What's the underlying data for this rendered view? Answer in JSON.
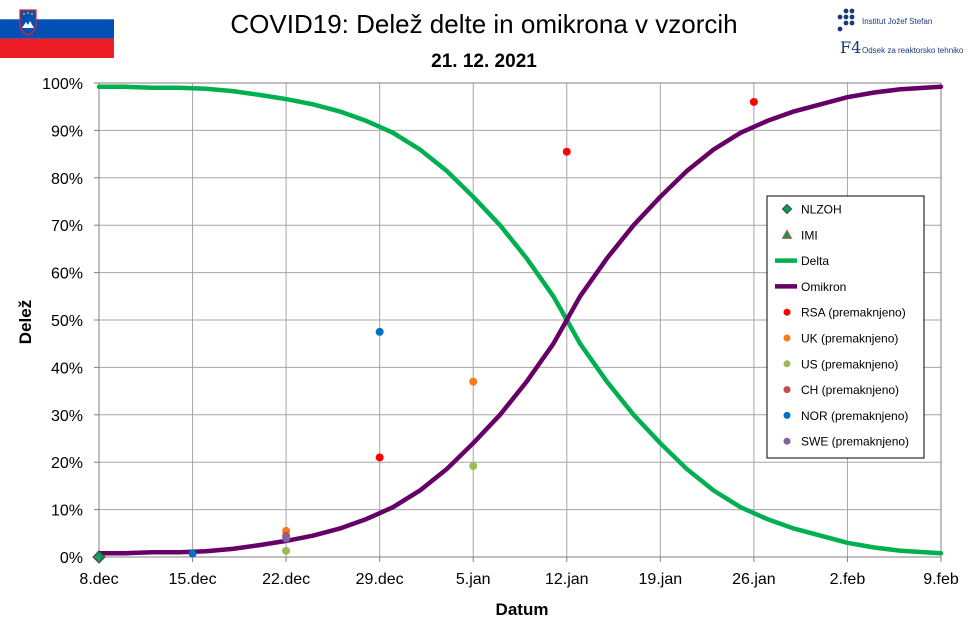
{
  "header": {
    "title": "COVID19: Delež delte in omikrona v vzorcih",
    "date": "21. 12. 2021",
    "logo_ijs_text": "Institut Jožef Stefan",
    "logo_f4_text": "Odsek za reaktorsko tehniko",
    "logo_f4_mark": "F4"
  },
  "chart_data": {
    "type": "line",
    "xlabel": "Datum",
    "ylabel": "Delež",
    "x_tick_labels": [
      "8.dec",
      "15.dec",
      "22.dec",
      "29.dec",
      "5.jan",
      "12.jan",
      "19.jan",
      "26.jan",
      "2.feb",
      "9.feb"
    ],
    "x_tick_days": [
      0,
      7,
      14,
      21,
      28,
      35,
      42,
      49,
      56,
      63
    ],
    "xlim": [
      0,
      63
    ],
    "ylim": [
      0,
      100
    ],
    "y_ticks": [
      0,
      10,
      20,
      30,
      40,
      50,
      60,
      70,
      80,
      90,
      100
    ],
    "y_tick_suffix": "%",
    "grid": true,
    "legend_position": "right",
    "series": [
      {
        "name": "Delta",
        "kind": "line",
        "color": "#00b050",
        "x": [
          0,
          2,
          4,
          6,
          8,
          10,
          12,
          14,
          16,
          18,
          20,
          22,
          24,
          26,
          28,
          30,
          32,
          34,
          35,
          36,
          38,
          40,
          42,
          44,
          46,
          48,
          50,
          52,
          54,
          56,
          58,
          60,
          63
        ],
        "y": [
          99.2,
          99.2,
          99,
          99,
          98.8,
          98.3,
          97.5,
          96.6,
          95.5,
          94,
          92,
          89.5,
          86,
          81.5,
          76,
          70,
          63,
          55,
          50,
          45,
          37,
          30,
          24,
          18.5,
          14,
          10.5,
          8,
          6,
          4.5,
          3,
          2,
          1.3,
          0.8
        ]
      },
      {
        "name": "Omikron",
        "kind": "line",
        "color": "#660066",
        "x": [
          0,
          2,
          4,
          6,
          8,
          10,
          12,
          14,
          16,
          18,
          20,
          22,
          24,
          26,
          28,
          30,
          32,
          34,
          35,
          36,
          38,
          40,
          42,
          44,
          46,
          48,
          50,
          52,
          54,
          56,
          58,
          60,
          63
        ],
        "y": [
          0.8,
          0.8,
          1,
          1,
          1.2,
          1.7,
          2.5,
          3.4,
          4.5,
          6,
          8,
          10.5,
          14,
          18.5,
          24,
          30,
          37,
          45,
          50,
          55,
          63,
          70,
          76,
          81.5,
          86,
          89.5,
          92,
          94,
          95.5,
          97,
          98,
          98.7,
          99.2
        ]
      },
      {
        "name": "NLZOH",
        "kind": "marker",
        "marker": "diamond",
        "color": "#00a050",
        "x": [
          0
        ],
        "y": [
          0
        ]
      },
      {
        "name": "IMI",
        "kind": "marker",
        "marker": "triangle",
        "color": "#00a050",
        "x": [],
        "y": []
      },
      {
        "name": "RSA (premaknjeno)",
        "kind": "marker",
        "marker": "circle",
        "color": "#ff0000",
        "x": [
          21,
          35,
          49
        ],
        "y": [
          21,
          85.5,
          96
        ]
      },
      {
        "name": "UK (premaknjeno)",
        "kind": "marker",
        "marker": "circle",
        "color": "#f47b20",
        "x": [
          14,
          28
        ],
        "y": [
          5.5,
          37
        ]
      },
      {
        "name": "US (premaknjeno)",
        "kind": "marker",
        "marker": "circle",
        "color": "#9bbb59",
        "x": [
          14,
          28
        ],
        "y": [
          1.3,
          19.2
        ]
      },
      {
        "name": "CH (premaknjeno)",
        "kind": "marker",
        "marker": "circle",
        "color": "#c0504d",
        "x": [
          14
        ],
        "y": [
          4.5
        ]
      },
      {
        "name": "NOR (premaknjeno)",
        "kind": "marker",
        "marker": "circle",
        "color": "#0070c0",
        "x": [
          7,
          21
        ],
        "y": [
          0.7,
          47.5
        ]
      },
      {
        "name": "SWE (premaknjeno)",
        "kind": "marker",
        "marker": "circle",
        "color": "#8064a2",
        "x": [
          14
        ],
        "y": [
          3.9
        ]
      }
    ]
  },
  "colors": {
    "grid": "#a6a6a6",
    "flag_white": "#ffffff",
    "flag_blue": "#0050b5",
    "flag_red": "#ee1c25"
  }
}
